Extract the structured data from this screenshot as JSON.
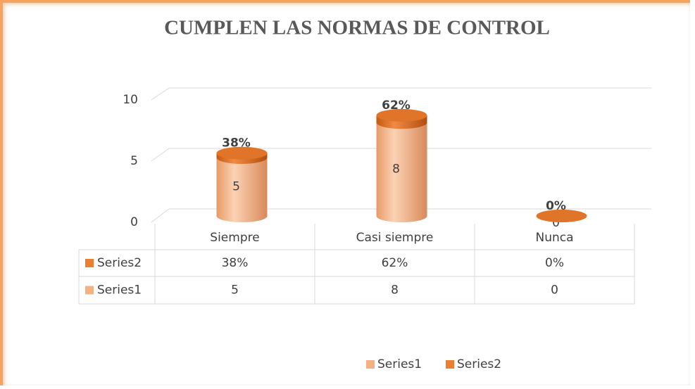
{
  "chart_data": {
    "type": "bar3d",
    "title": "CUMPLEN  LAS NORMAS DE CONTROL",
    "categories": [
      "Siempre",
      "Casi siempre",
      "Nunca"
    ],
    "series": [
      {
        "name": "Series1",
        "color": "#f4b183",
        "values": [
          5,
          8,
          0
        ]
      },
      {
        "name": "Series2",
        "color": "#ed7d31",
        "values": [
          0.38,
          0.62,
          0
        ],
        "value_labels": [
          "38%",
          "62%",
          "0%"
        ]
      }
    ],
    "ylim": [
      0,
      10
    ],
    "yticks": [
      0,
      5,
      10
    ],
    "grid": true,
    "stacked": true,
    "data_table": true,
    "legend": "bottom"
  }
}
